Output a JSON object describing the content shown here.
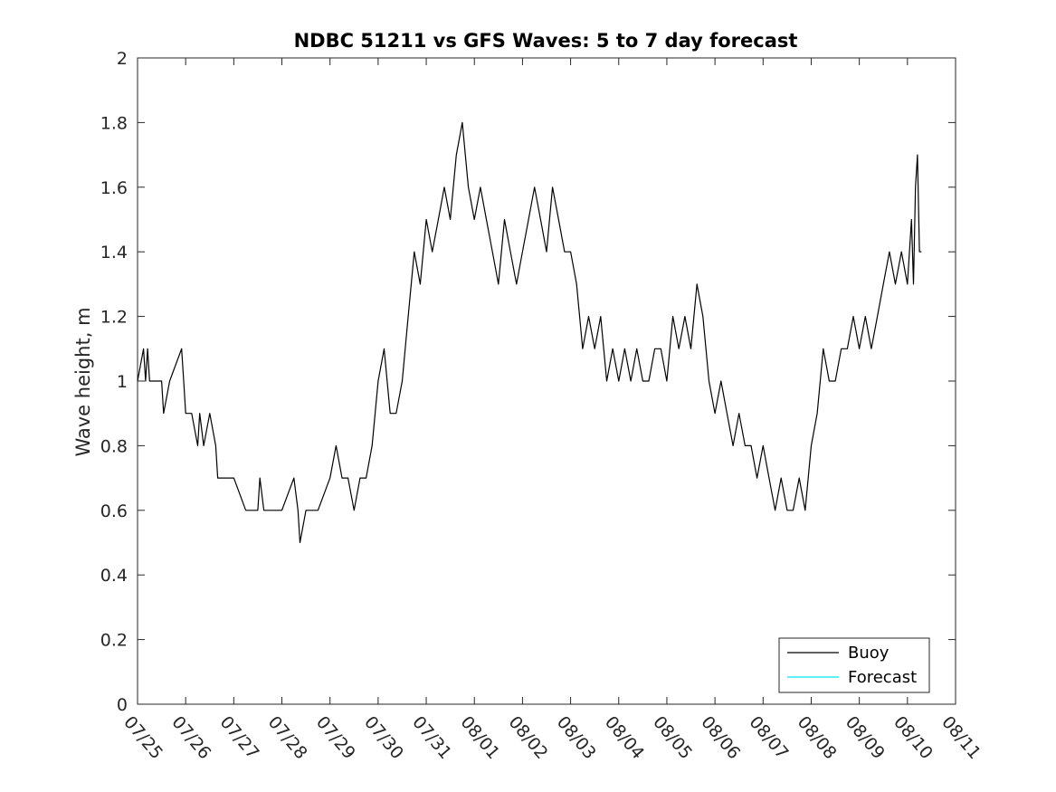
{
  "chart_data": {
    "type": "line",
    "title": "NDBC 51211 vs GFS Waves: 5 to 7 day forecast",
    "xlabel": "",
    "ylabel": "Wave height, m",
    "ylim": [
      0,
      2
    ],
    "yticks": [
      "0",
      "0.2",
      "0.4",
      "0.6",
      "0.8",
      "1",
      "1.2",
      "1.4",
      "1.6",
      "1.8",
      "2"
    ],
    "xlim": [
      "07/25",
      "08/11"
    ],
    "xticks": [
      "07/25",
      "07/26",
      "07/27",
      "07/28",
      "07/29",
      "07/30",
      "07/31",
      "08/01",
      "08/02",
      "08/03",
      "08/04",
      "08/05",
      "08/06",
      "08/07",
      "08/08",
      "08/09",
      "08/10",
      "08/11"
    ],
    "grid": false,
    "legend_position": "bottom-right",
    "colors": {
      "Buoy": "#000000",
      "Forecast": "#00e5ee"
    },
    "series": [
      {
        "name": "Buoy",
        "x": [
          "07/25 00:00",
          "07/25 03:00",
          "07/25 04:00",
          "07/25 05:00",
          "07/25 06:00",
          "07/25 09:00",
          "07/25 12:00",
          "07/25 13:00",
          "07/25 16:00",
          "07/25 22:00",
          "07/25 23:00",
          "07/26 00:00",
          "07/26 03:00",
          "07/26 06:00",
          "07/26 07:00",
          "07/26 09:00",
          "07/26 12:00",
          "07/26 15:00",
          "07/26 16:00",
          "07/26 18:00",
          "07/26 21:00",
          "07/26 22:00",
          "07/27 00:00",
          "07/27 06:00",
          "07/27 12:00",
          "07/27 13:00",
          "07/27 15:00",
          "07/27 21:00",
          "07/28 00:00",
          "07/28 06:00",
          "07/28 08:00",
          "07/28 09:00",
          "07/28 12:00",
          "07/28 18:00",
          "07/29 00:00",
          "07/29 03:00",
          "07/29 06:00",
          "07/29 09:00",
          "07/29 12:00",
          "07/29 15:00",
          "07/29 18:00",
          "07/29 21:00",
          "07/30 00:00",
          "07/30 03:00",
          "07/30 06:00",
          "07/30 09:00",
          "07/30 12:00",
          "07/30 15:00",
          "07/30 18:00",
          "07/30 21:00",
          "07/31 00:00",
          "07/31 03:00",
          "07/31 06:00",
          "07/31 09:00",
          "07/31 12:00",
          "07/31 15:00",
          "07/31 18:00",
          "07/31 21:00",
          "08/01 00:00",
          "08/01 03:00",
          "08/01 06:00",
          "08/01 09:00",
          "08/01 12:00",
          "08/01 15:00",
          "08/01 18:00",
          "08/01 21:00",
          "08/02 00:00",
          "08/02 03:00",
          "08/02 06:00",
          "08/02 09:00",
          "08/02 12:00",
          "08/02 15:00",
          "08/02 18:00",
          "08/02 21:00",
          "08/03 00:00",
          "08/03 03:00",
          "08/03 06:00",
          "08/03 09:00",
          "08/03 12:00",
          "08/03 15:00",
          "08/03 18:00",
          "08/03 21:00",
          "08/04 00:00",
          "08/04 03:00",
          "08/04 06:00",
          "08/04 09:00",
          "08/04 12:00",
          "08/04 15:00",
          "08/04 18:00",
          "08/04 21:00",
          "08/05 00:00",
          "08/05 03:00",
          "08/05 06:00",
          "08/05 09:00",
          "08/05 12:00",
          "08/05 15:00",
          "08/05 18:00",
          "08/05 21:00",
          "08/06 00:00",
          "08/06 03:00",
          "08/06 06:00",
          "08/06 09:00",
          "08/06 12:00",
          "08/06 15:00",
          "08/06 18:00",
          "08/06 21:00",
          "08/07 00:00",
          "08/07 03:00",
          "08/07 06:00",
          "08/07 09:00",
          "08/07 12:00",
          "08/07 15:00",
          "08/07 18:00",
          "08/07 21:00",
          "08/08 00:00",
          "08/08 03:00",
          "08/08 06:00",
          "08/08 09:00",
          "08/08 12:00",
          "08/08 15:00",
          "08/08 18:00",
          "08/08 21:00",
          "08/09 00:00",
          "08/09 03:00",
          "08/09 06:00",
          "08/09 09:00",
          "08/09 12:00",
          "08/09 15:00",
          "08/09 18:00",
          "08/09 21:00",
          "08/10 00:00",
          "08/10 02:00",
          "08/10 03:00",
          "08/10 04:00",
          "08/10 05:00",
          "08/10 06:00",
          "08/10 07:00"
        ],
        "y": [
          1.0,
          1.1,
          1.0,
          1.1,
          1.0,
          1.0,
          1.0,
          0.9,
          1.0,
          1.1,
          1.0,
          0.9,
          0.9,
          0.8,
          0.9,
          0.8,
          0.9,
          0.8,
          0.7,
          0.7,
          0.7,
          0.7,
          0.7,
          0.6,
          0.6,
          0.7,
          0.6,
          0.6,
          0.6,
          0.7,
          0.6,
          0.5,
          0.6,
          0.6,
          0.7,
          0.8,
          0.7,
          0.7,
          0.6,
          0.7,
          0.7,
          0.8,
          1.0,
          1.1,
          0.9,
          0.9,
          1.0,
          1.2,
          1.4,
          1.3,
          1.5,
          1.4,
          1.5,
          1.6,
          1.5,
          1.7,
          1.8,
          1.6,
          1.5,
          1.6,
          1.5,
          1.4,
          1.3,
          1.5,
          1.4,
          1.3,
          1.4,
          1.5,
          1.6,
          1.5,
          1.4,
          1.6,
          1.5,
          1.4,
          1.4,
          1.3,
          1.1,
          1.2,
          1.1,
          1.2,
          1.0,
          1.1,
          1.0,
          1.1,
          1.0,
          1.1,
          1.0,
          1.0,
          1.1,
          1.1,
          1.0,
          1.2,
          1.1,
          1.2,
          1.1,
          1.3,
          1.2,
          1.0,
          0.9,
          1.0,
          0.9,
          0.8,
          0.9,
          0.8,
          0.8,
          0.7,
          0.8,
          0.7,
          0.6,
          0.7,
          0.6,
          0.6,
          0.7,
          0.6,
          0.8,
          0.9,
          1.1,
          1.0,
          1.0,
          1.1,
          1.1,
          1.2,
          1.1,
          1.2,
          1.1,
          1.2,
          1.3,
          1.4,
          1.3,
          1.4,
          1.3,
          1.5,
          1.3,
          1.6,
          1.7,
          1.4,
          1.4
        ]
      },
      {
        "name": "Forecast",
        "x": [],
        "y": []
      }
    ]
  }
}
